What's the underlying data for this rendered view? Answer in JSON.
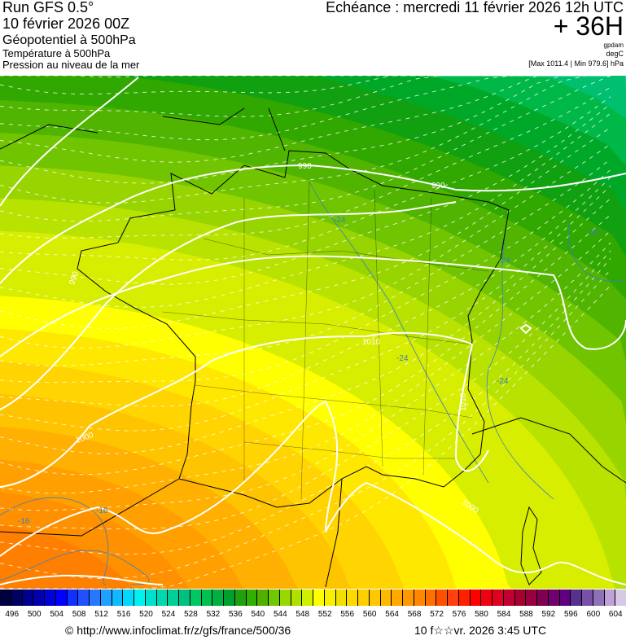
{
  "header": {
    "run": "Run GFS 0.5°",
    "run_date": "10 février 2026 00Z",
    "field1": "Géopotentiel à 500hPa",
    "field2": "Température à 500hPa",
    "field3": "Pression au niveau de la mer",
    "echeance": "Echéance : mercredi 11 février 2026 12h UTC",
    "lead": "+ 36H",
    "unit1": "gpdam",
    "unit2": "degC",
    "pressure_range": "[Max 1011.4 | Min 979.6] hPa"
  },
  "map": {
    "isobar_labels": [
      "990",
      "990",
      "990",
      "1000",
      "1010",
      "1010",
      "1000"
    ],
    "temp_labels": [
      "-24",
      "-24",
      "-24",
      "-24",
      "-24",
      "-16",
      "-16"
    ]
  },
  "colorbar": {
    "labels": [
      "496",
      "500",
      "504",
      "508",
      "512",
      "516",
      "520",
      "524",
      "528",
      "532",
      "536",
      "540",
      "544",
      "548",
      "552",
      "556",
      "560",
      "564",
      "568",
      "572",
      "576",
      "580",
      "584",
      "588",
      "592",
      "596",
      "600",
      "604"
    ],
    "colors": [
      "#000040",
      "#000060",
      "#000090",
      "#0000b0",
      "#0000d8",
      "#0000ff",
      "#1030ff",
      "#2050ff",
      "#2878ff",
      "#20a0ff",
      "#10b8ff",
      "#00d8ff",
      "#00f0f0",
      "#00e0d0",
      "#00d8b0",
      "#00d098",
      "#00c080",
      "#00c860",
      "#00c050",
      "#00b040",
      "#00a030",
      "#20a010",
      "#30b000",
      "#50b000",
      "#70c800",
      "#98d800",
      "#b0e000",
      "#d0f000",
      "#ffff00",
      "#f8f000",
      "#f0e000",
      "#ffd800",
      "#ffd000",
      "#ffc800",
      "#ffb800",
      "#ffa800",
      "#ff9800",
      "#ff8800",
      "#ff7000",
      "#ff5000",
      "#ff4010",
      "#ff2000",
      "#ff0000",
      "#f00010",
      "#e00020",
      "#c00030",
      "#a80030",
      "#980040",
      "#800050",
      "#700070",
      "#600080",
      "#583090",
      "#7850a8",
      "#9070b8",
      "#c0a0d8",
      "#d8c8e8"
    ]
  },
  "footer": {
    "url": "© http://www.infoclimat.fr/z/gfs/france/500/36",
    "generated": "10 f☆☆vr. 2026  3:45 UTC"
  }
}
